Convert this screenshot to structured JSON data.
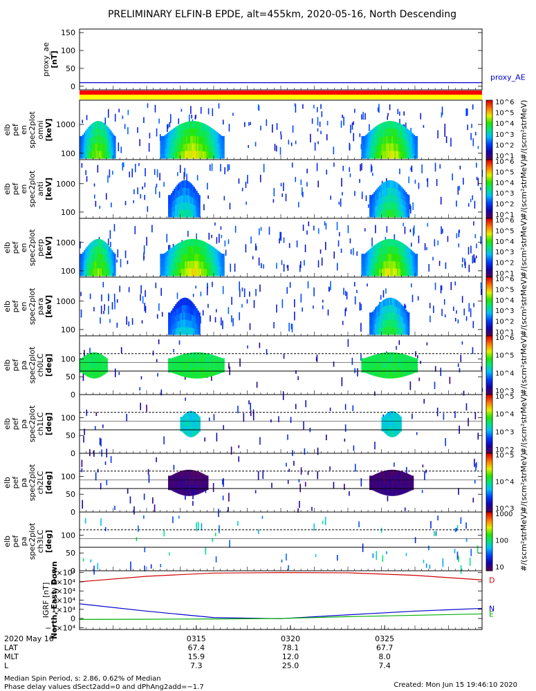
{
  "title": "PRELIMINARY ELFIN-B EPDE, alt=455km, 2020-05-16, North Descending",
  "chart_data": {
    "type": "spectrogram",
    "panels": [
      {
        "key": "ae",
        "kind": "line",
        "ylabel_lines": [
          "proxy_ae",
          "[nT]"
        ],
        "ylim": [
          -10,
          160
        ],
        "yticks": [
          0,
          50,
          100,
          150
        ],
        "ytick_labels": [
          "0",
          "50",
          "100",
          "150"
        ],
        "series": [
          {
            "name": "proxy_AE",
            "color": "#0000c8",
            "values": [
              10,
              10
            ]
          }
        ]
      },
      {
        "key": "en_omni",
        "kind": "energy",
        "ylabel_lines": [
          "elb",
          "pef",
          "en",
          "spec2plot",
          "omni",
          "[keV]"
        ],
        "yticks": [
          100,
          1000
        ],
        "ytick_labels": [
          "100",
          "1000"
        ],
        "colorbar_ticks": [
          "10^1",
          "10^2",
          "10^3",
          "10^4",
          "10^5",
          "10^6"
        ],
        "colorbar_label": "#/(scm²strMeV)",
        "blobs": [
          {
            "t0": 0.0,
            "t1": 0.09,
            "level": 0.55
          },
          {
            "t0": 0.2,
            "t1": 0.36,
            "level": 0.62
          },
          {
            "t0": 0.7,
            "t1": 0.84,
            "level": 0.6
          }
        ]
      },
      {
        "key": "en_perp",
        "kind": "energy",
        "ylabel_lines": [
          "elb",
          "pef",
          "en",
          "spec2plot",
          "anti",
          "[keV]"
        ],
        "yticks": [
          100,
          1000
        ],
        "ytick_labels": [
          "100",
          "1000"
        ],
        "colorbar_ticks": [
          "10^1",
          "10^2",
          "10^3",
          "10^4",
          "10^5",
          "10^6"
        ],
        "colorbar_label": "#/(scm²strMeV)",
        "blobs": [
          {
            "t0": 0.22,
            "t1": 0.3,
            "level": 0.35
          },
          {
            "t0": 0.72,
            "t1": 0.82,
            "level": 0.45
          }
        ]
      },
      {
        "key": "en_para",
        "kind": "energy",
        "ylabel_lines": [
          "elb",
          "pef",
          "en",
          "spec2plot",
          "perp",
          "[keV]"
        ],
        "yticks": [
          100,
          1000
        ],
        "ytick_labels": [
          "100",
          "1000"
        ],
        "colorbar_ticks": [
          "10^1",
          "10^2",
          "10^3",
          "10^4",
          "10^5",
          "10^6"
        ],
        "colorbar_label": "#/(scm²strMeV)",
        "blobs": [
          {
            "t0": 0.0,
            "t1": 0.09,
            "level": 0.55
          },
          {
            "t0": 0.2,
            "t1": 0.36,
            "level": 0.62
          },
          {
            "t0": 0.7,
            "t1": 0.84,
            "level": 0.6
          }
        ]
      },
      {
        "key": "en_par",
        "kind": "energy",
        "ylabel_lines": [
          "elb",
          "pef",
          "en",
          "spec2plot",
          "para",
          "[keV]"
        ],
        "yticks": [
          100,
          1000
        ],
        "ytick_labels": [
          "100",
          "1000"
        ],
        "colorbar_ticks": [
          "10^1",
          "10^2",
          "10^3",
          "10^4",
          "10^5",
          "10^6"
        ],
        "colorbar_label": "#/(scm²strMeV)",
        "blobs": [
          {
            "t0": 0.22,
            "t1": 0.3,
            "level": 0.3
          },
          {
            "t0": 0.72,
            "t1": 0.82,
            "level": 0.45
          }
        ]
      },
      {
        "key": "pa_ch0",
        "kind": "pa",
        "ylabel_lines": [
          "elb",
          "pef",
          "pa",
          "spec2plot",
          "ch0LC",
          "[deg]"
        ],
        "yticks": [
          0,
          50,
          100
        ],
        "ytick_labels": [
          "0",
          "50",
          "100"
        ],
        "colorbar_ticks": [
          "10^3",
          "10^4",
          "10^5",
          "10^6"
        ],
        "colorbar_label": "#/(scm²strMeV)",
        "dashed_line_deg": 115,
        "solid_line_deg": 66,
        "blobs": [
          {
            "t0": 0.0,
            "t1": 0.07,
            "level": 0.55
          },
          {
            "t0": 0.22,
            "t1": 0.36,
            "level": 0.55
          },
          {
            "t0": 0.7,
            "t1": 0.84,
            "level": 0.55
          }
        ]
      },
      {
        "key": "pa_ch1",
        "kind": "pa",
        "ylabel_lines": [
          "elb",
          "pef",
          "pa",
          "spec2plot",
          "ch1LC",
          "[deg]"
        ],
        "yticks": [
          0,
          50,
          100
        ],
        "ytick_labels": [
          "0",
          "50",
          "100"
        ],
        "colorbar_ticks": [
          "10^2",
          "10^3",
          "10^4",
          "10^5"
        ],
        "colorbar_label": "#/(scm²strMeV)",
        "dashed_line_deg": 115,
        "solid_line_deg": 66,
        "blobs": [
          {
            "t0": 0.25,
            "t1": 0.3,
            "level": 0.42
          },
          {
            "t0": 0.75,
            "t1": 0.8,
            "level": 0.42
          }
        ]
      },
      {
        "key": "pa_ch2",
        "kind": "pa",
        "ylabel_lines": [
          "elb",
          "pef",
          "pa",
          "spec2plot",
          "ch2LC",
          "[deg]"
        ],
        "yticks": [
          0,
          50,
          100
        ],
        "ytick_labels": [
          "0",
          "50",
          "100"
        ],
        "colorbar_ticks": [
          "10^3",
          "10^4",
          "10^5"
        ],
        "colorbar_label": "#/(scm²strMeV)",
        "dashed_line_deg": 115,
        "solid_line_deg": 66,
        "blobs": [
          {
            "t0": 0.22,
            "t1": 0.32,
            "level": 0.04
          },
          {
            "t0": 0.72,
            "t1": 0.83,
            "level": 0.04
          }
        ]
      },
      {
        "key": "pa_ch3",
        "kind": "pa",
        "ylabel_lines": [
          "elb",
          "pef",
          "pa",
          "spec2plot",
          "ch3LC",
          "[deg]"
        ],
        "yticks": [
          0,
          50,
          100
        ],
        "ytick_labels": [
          "0",
          "50",
          "100"
        ],
        "colorbar_ticks": [
          "10",
          "100",
          "1000"
        ],
        "colorbar_label": "#/(scm²strMeV)",
        "dashed_line_deg": 115,
        "solid_line_deg": 66,
        "blobs": []
      },
      {
        "key": "igrf",
        "kind": "line",
        "ylabel_lines": [
          "IGRF [nT]",
          "North, East, Down"
        ],
        "ylim": [
          -12000,
          52000
        ],
        "yticks": [
          -10000,
          0,
          10000,
          20000,
          30000,
          40000,
          50000
        ],
        "ytick_labels": [
          "−1×10⁴",
          "0",
          "1×10⁴",
          "2×10⁴",
          "3×10⁴",
          "4×10⁴",
          "5×10⁴"
        ],
        "series": [
          {
            "name": "D",
            "color": "#d00000",
            "values": [
              40000,
              46000,
              49500,
              50000,
              49800,
              47000,
              42000
            ]
          },
          {
            "name": "N",
            "color": "#0000c8",
            "values": [
              16000,
              8000,
              1000,
              -200,
              4000,
              8000,
              11000
            ]
          },
          {
            "name": "E",
            "color": "#00b000",
            "values": [
              -1000,
              -800,
              -500,
              0,
              2000,
              3500,
              5000
            ]
          }
        ]
      }
    ],
    "x_ticks": [
      {
        "t": 0.29,
        "time": "0315",
        "LAT": "67.4",
        "MLT": "15.9",
        "L": "7.3"
      },
      {
        "t": 0.524,
        "time": "0320",
        "LAT": "78.1",
        "MLT": "12.0",
        "L": "25.0"
      },
      {
        "t": 0.758,
        "time": "0325",
        "LAT": "67.7",
        "MLT": "8.0",
        "L": "7.4"
      }
    ],
    "x_row_labels": [
      "2020 May 16",
      "LAT",
      "MLT",
      "L"
    ]
  },
  "footer": {
    "spin": "Median Spin Period, s: 2.86, 0.62% of Median",
    "phase": "Phase delay values dSect2add=0 and dPhAng2add=−1.7",
    "created": "Created: Mon Jun 15 19:46:10 2020"
  },
  "colors": {
    "bar_red": "#ff0000",
    "bar_yellow": "#ffff00",
    "axis": "#000000"
  }
}
